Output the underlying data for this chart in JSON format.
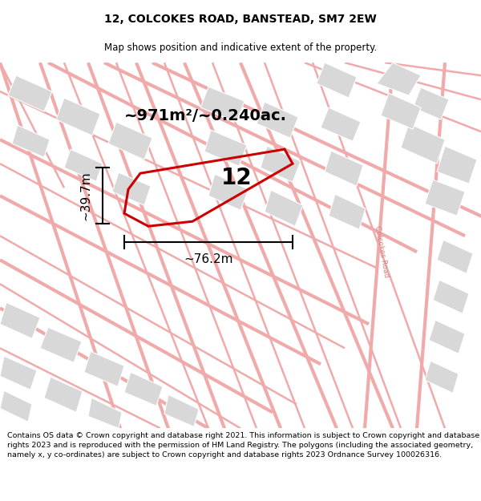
{
  "title": "12, COLCOKES ROAD, BANSTEAD, SM7 2EW",
  "subtitle": "Map shows position and indicative extent of the property.",
  "footer": "Contains OS data © Crown copyright and database right 2021. This information is subject to Crown copyright and database rights 2023 and is reproduced with the permission of HM Land Registry. The polygons (including the associated geometry, namely x, y co-ordinates) are subject to Crown copyright and database rights 2023 Ordnance Survey 100026316.",
  "area_text": "~971m²/~0.240ac.",
  "width_label": "~76.2m",
  "height_label": "~39.7m",
  "number_label": "12",
  "bg_color": "#ffffff",
  "map_bg": "#f5f5f5",
  "road_color": "#f0aaaa",
  "block_color": "#d8d8d8",
  "plot_outline_color": "#cc0000",
  "title_fontsize": 10,
  "subtitle_fontsize": 8.5,
  "footer_fontsize": 6.8,
  "area_fontsize": 14,
  "number_fontsize": 20,
  "dim_fontsize": 11,
  "road_label_fontsize": 6.5
}
